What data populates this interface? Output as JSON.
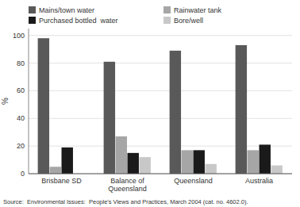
{
  "chart_data": {
    "type": "bar",
    "categories": [
      "Brisbane SD",
      "Balance of\nQueensland",
      "Queensland",
      "Australia"
    ],
    "series": [
      {
        "name": "Mains/town water",
        "color": "#595959",
        "values": [
          98,
          81,
          89,
          93
        ]
      },
      {
        "name": "Rainwater tank",
        "color": "#a6a6a6",
        "values": [
          5,
          27,
          17,
          17
        ]
      },
      {
        "name": "Purchased bottled  water",
        "color": "#1a1a1a",
        "values": [
          19,
          15,
          17,
          21
        ]
      },
      {
        "name": "Bore/well",
        "color": "#c8c8c8",
        "values": [
          0,
          12,
          7,
          6
        ]
      }
    ],
    "ylabel": "%",
    "annotations": [
      "Source:  Environmental Issues:  People's Views and Practices, March 2004 (cat. no. 4602.0)."
    ],
    "ylim": [
      0,
      105
    ],
    "yticks": [
      0,
      20,
      40,
      60,
      80,
      100
    ],
    "grid": true,
    "legend": "top"
  }
}
